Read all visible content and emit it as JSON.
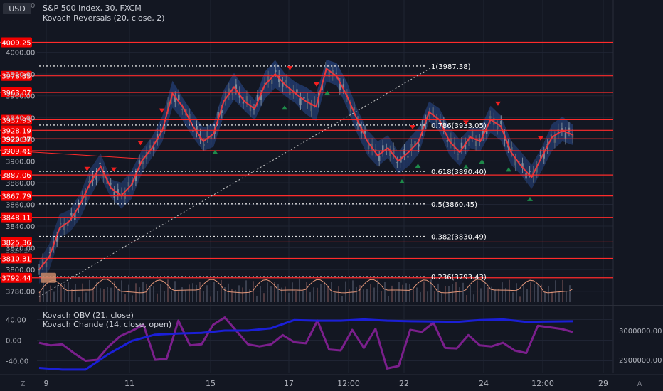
{
  "header": {
    "currency": "USD",
    "symbol_line": "S&P 500 Index, 30, FXCM",
    "main_indicator": "Kovach Reversals (20, close, 2)",
    "obv_indicator": "Kovach OBV (21, close)",
    "chande_indicator": "Kovach Chande (14, close, open)"
  },
  "bottom_bar": {
    "left_icon": "Z",
    "right_icon": "A"
  },
  "chart_data": {
    "type": "line",
    "price_axis": {
      "ticks": [
        4000.0,
        3980.0,
        3960.0,
        3940.0,
        3920.0,
        3900.0,
        3880.0,
        3860.0,
        3840.0,
        3820.0,
        3800.0,
        3780.0
      ],
      "partial_ticks": [
        "4020.00",
        "3920.37",
        "3824.24"
      ],
      "range": [
        3770,
        4022
      ]
    },
    "time_axis": {
      "ticks": [
        "9",
        "11",
        "15",
        "17",
        "12:00",
        "22",
        "24",
        "12:00",
        "29"
      ]
    },
    "horizontal_levels": [
      4009.25,
      3978.35,
      3963.07,
      3937.93,
      3928.19,
      3920.37,
      3909.41,
      3887.06,
      3867.79,
      3848.11,
      3825.36,
      3810.31,
      3792.44
    ],
    "fibonacci_levels": [
      {
        "label": "1(3987.38)",
        "value": 3987.38
      },
      {
        "label": "0.786(3933.05)",
        "value": 3933.05
      },
      {
        "label": "0.618(3890.40)",
        "value": 3890.4
      },
      {
        "label": "0.5(3860.45)",
        "value": 3860.45
      },
      {
        "label": "0.382(3830.49)",
        "value": 3830.49
      },
      {
        "label": "0.236(3793.43)",
        "value": 3793.43
      }
    ],
    "price_series": [
      3800,
      3812,
      3838,
      3845,
      3860,
      3880,
      3895,
      3875,
      3868,
      3878,
      3900,
      3912,
      3928,
      3962,
      3950,
      3932,
      3918,
      3925,
      3955,
      3968,
      3955,
      3948,
      3970,
      3980,
      3970,
      3962,
      3955,
      3950,
      3985,
      3978,
      3960,
      3938,
      3918,
      3905,
      3912,
      3900,
      3908,
      3918,
      3945,
      3938,
      3918,
      3908,
      3922,
      3918,
      3938,
      3932,
      3908,
      3895,
      3885,
      3904,
      3922,
      3928,
      3924
    ],
    "signals": {
      "sell": [
        0.09,
        0.14,
        0.19,
        0.23,
        0.47,
        0.52,
        0.7,
        0.8,
        0.86,
        0.94
      ],
      "buy": [
        0.33,
        0.46,
        0.54,
        0.68,
        0.71,
        0.8,
        0.83,
        0.88,
        0.92
      ]
    },
    "obv": {
      "name": "Kovach OBV (21, close)",
      "axis_ticks": [
        "3000000.00",
        "2900000.00"
      ],
      "values": [
        2872000,
        2866000,
        2866000,
        2920000,
        2965000,
        2986000,
        2990000,
        2992000,
        3000000,
        3000000,
        3008000,
        3036000,
        3034000,
        3034000,
        3038000,
        3034000,
        3032000,
        3031000,
        3030000,
        3036000,
        3038000,
        3030000,
        3031000,
        3032000
      ]
    },
    "chande": {
      "name": "Kovach Chande (14, close, open)",
      "axis_ticks": [
        "40.00",
        "0.00",
        "-40.00"
      ],
      "range": [
        -60,
        60
      ],
      "values": [
        -5,
        -10,
        -8,
        -25,
        -40,
        -38,
        -12,
        8,
        18,
        30,
        -38,
        -36,
        38,
        -10,
        -8,
        30,
        44,
        18,
        -8,
        -12,
        -8,
        10,
        -4,
        -6,
        38,
        -18,
        -20,
        20,
        -15,
        22,
        -55,
        -50,
        20,
        16,
        34,
        -15,
        -16,
        10,
        -10,
        -12,
        -5,
        -20,
        -25,
        28,
        25,
        22,
        16
      ]
    },
    "grid": true
  }
}
